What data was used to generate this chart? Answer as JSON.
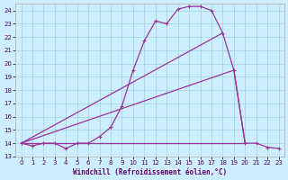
{
  "xlabel": "Windchill (Refroidissement éolien,°C)",
  "background_color": "#cceeff",
  "line_color": "#993399",
  "xlim": [
    -0.5,
    23.5
  ],
  "ylim": [
    13,
    24.5
  ],
  "yticks": [
    13,
    14,
    15,
    16,
    17,
    18,
    19,
    20,
    21,
    22,
    23,
    24
  ],
  "xticks": [
    0,
    1,
    2,
    3,
    4,
    5,
    6,
    7,
    8,
    9,
    10,
    11,
    12,
    13,
    14,
    15,
    16,
    17,
    18,
    19,
    20,
    21,
    22,
    23
  ],
  "curve1_x": [
    0,
    1,
    2,
    3,
    4,
    5,
    6,
    7,
    8,
    9,
    10,
    11,
    12,
    13,
    14,
    15,
    16,
    17,
    18,
    19,
    20,
    21,
    22,
    23
  ],
  "curve1_y": [
    14.0,
    13.8,
    14.0,
    14.0,
    13.6,
    14.0,
    14.0,
    14.5,
    15.2,
    16.8,
    19.5,
    21.7,
    23.2,
    23.0,
    24.1,
    24.3,
    24.3,
    24.0,
    22.3,
    19.5,
    14.0,
    14.0,
    13.7,
    13.6
  ],
  "curve2_x": [
    0,
    19,
    20
  ],
  "curve2_y": [
    14.0,
    19.5,
    14.0
  ],
  "curve3_x": [
    0,
    18
  ],
  "curve3_y": [
    14.0,
    22.3
  ],
  "curve4_x": [
    0,
    20
  ],
  "curve4_y": [
    14.0,
    14.0
  ],
  "xlabel_color": "#660066",
  "xlabel_fontsize": 5.5,
  "tick_fontsize": 5,
  "grid_color": "#99cccc",
  "grid_linewidth": 0.4
}
